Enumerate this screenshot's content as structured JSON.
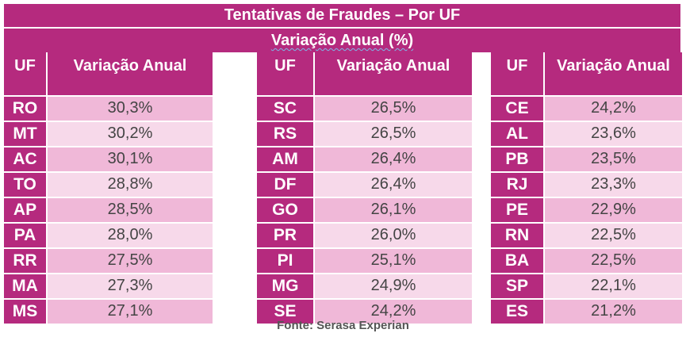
{
  "title": "Tentativas de Fraudes – Por UF",
  "subtitle": "Variação Anual (%)",
  "groups": [
    {
      "uf_header": "UF",
      "value_header": "Variação Anual",
      "rows": [
        {
          "uf": "RO",
          "value": "30,3%"
        },
        {
          "uf": "MT",
          "value": "30,2%"
        },
        {
          "uf": "AC",
          "value": "30,1%"
        },
        {
          "uf": "TO",
          "value": "28,8%"
        },
        {
          "uf": "AP",
          "value": "28,5%"
        },
        {
          "uf": "PA",
          "value": "28,0%"
        },
        {
          "uf": "RR",
          "value": "27,5%"
        },
        {
          "uf": "MA",
          "value": "27,3%"
        },
        {
          "uf": "MS",
          "value": "27,1%"
        }
      ]
    },
    {
      "uf_header": "UF",
      "value_header": "Variação Anual",
      "rows": [
        {
          "uf": "SC",
          "value": "26,5%"
        },
        {
          "uf": "RS",
          "value": "26,5%"
        },
        {
          "uf": "AM",
          "value": "26,4%"
        },
        {
          "uf": "DF",
          "value": "26,4%"
        },
        {
          "uf": "GO",
          "value": "26,1%"
        },
        {
          "uf": "PR",
          "value": "26,0%"
        },
        {
          "uf": "PI",
          "value": "25,1%"
        },
        {
          "uf": "MG",
          "value": "24,9%"
        },
        {
          "uf": "SE",
          "value": "24,2%"
        }
      ]
    },
    {
      "uf_header": "UF",
      "value_header": "Variação Anual",
      "rows": [
        {
          "uf": "CE",
          "value": "24,2%"
        },
        {
          "uf": "AL",
          "value": "23,6%"
        },
        {
          "uf": "PB",
          "value": "23,5%"
        },
        {
          "uf": "RJ",
          "value": "23,3%"
        },
        {
          "uf": "PE",
          "value": "22,9%"
        },
        {
          "uf": "RN",
          "value": "22,5%"
        },
        {
          "uf": "BA",
          "value": "22,5%"
        },
        {
          "uf": "SP",
          "value": "22,1%"
        },
        {
          "uf": "ES",
          "value": "21,2%"
        }
      ]
    }
  ],
  "source": "Fonte: Serasa Experian",
  "colors": {
    "header": "#b52a7e",
    "row_dark": "#f0b8d8",
    "row_light": "#f7d9ea"
  }
}
